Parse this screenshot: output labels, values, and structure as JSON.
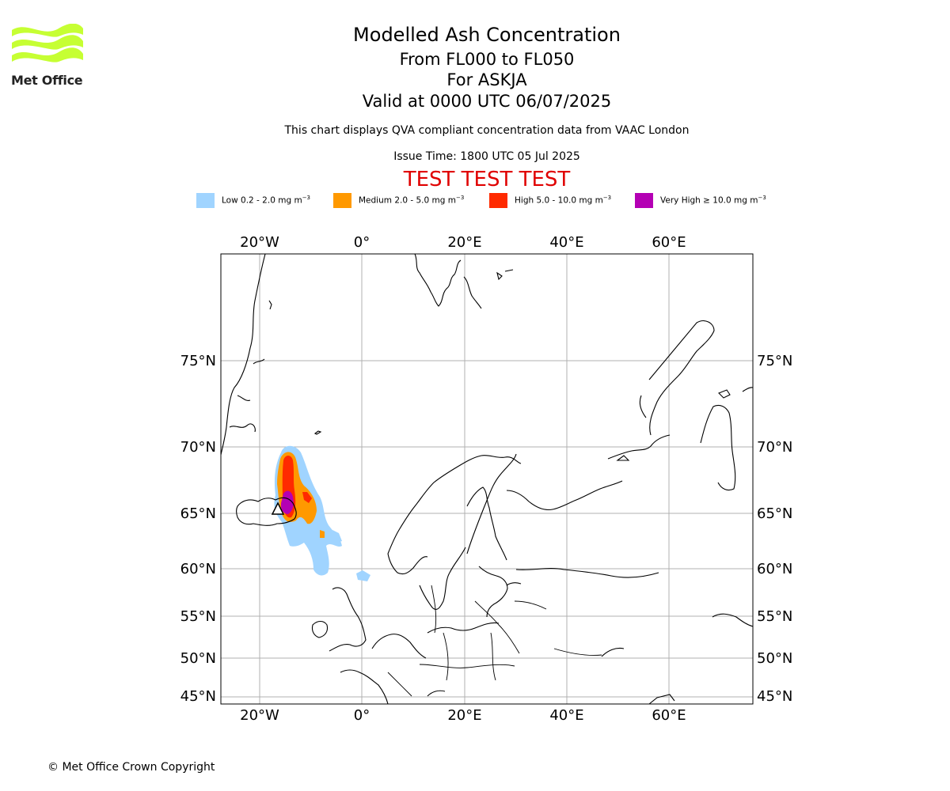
{
  "header": {
    "title": "Modelled Ash Concentration",
    "levels": "From FL000 to FL050",
    "volcano": "For ASKJA",
    "valid": "Valid at 0000 UTC 06/07/2025",
    "description": "This chart displays QVA compliant concentration data from VAAC London",
    "issue_time": "Issue Time: 1800 UTC 05 Jul 2025",
    "test_banner": "TEST TEST TEST"
  },
  "logo": {
    "text": "Met Office",
    "color": "#c6ff33"
  },
  "legend": [
    {
      "label": "Low 0.2 - 2.0 mg m",
      "color": "#a0d4ff"
    },
    {
      "label": "Medium 2.0 - 5.0 mg m",
      "color": "#ff9900"
    },
    {
      "label": "High 5.0 - 10.0 mg m",
      "color": "#ff2a00"
    },
    {
      "label": "Very High ≥ 10.0 mg m",
      "color": "#b400b4"
    }
  ],
  "legend_unit_exp": "−3",
  "axes": {
    "lon_ticks": [
      "20°W",
      "0°",
      "20°E",
      "40°E",
      "60°E"
    ],
    "lat_ticks": [
      "75°N",
      "70°N",
      "65°N",
      "60°N",
      "55°N",
      "50°N",
      "45°N"
    ]
  },
  "map": {
    "projection": "stereographic",
    "extent": {
      "lon_min": -28,
      "lon_max": 76,
      "lat_min": 44,
      "lat_max": 83
    },
    "grid": true
  },
  "footer": {
    "copyright": "© Met Office Crown Copyright"
  }
}
